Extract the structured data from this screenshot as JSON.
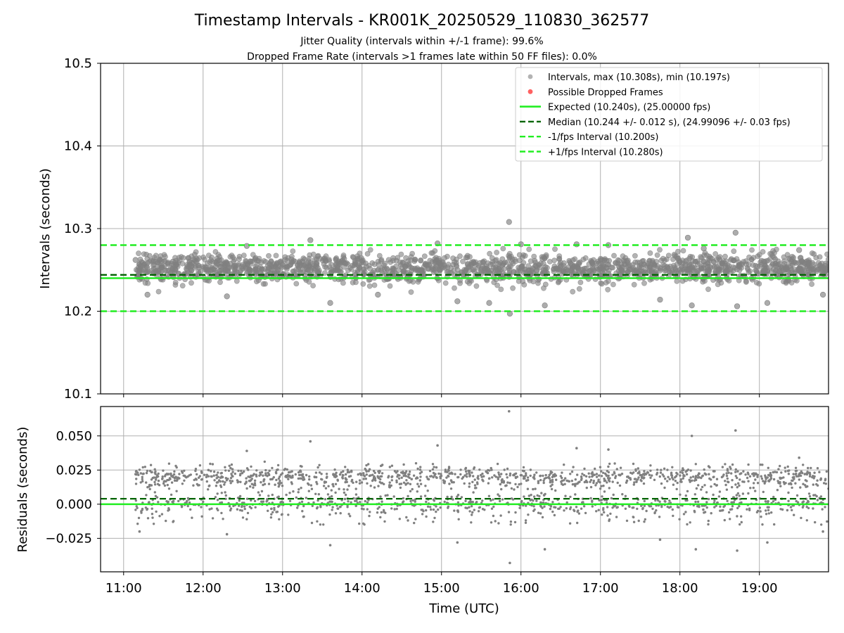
{
  "chart_data": [
    {
      "type": "scatter",
      "title": "Timestamp Intervals - KR001K_20250529_110830_362577",
      "subtitle_lines": [
        "Jitter Quality (intervals within +/-1 frame): 99.6%",
        "Dropped Frame Rate (intervals >1 frames late within 50 FF files): 0.0%"
      ],
      "ylabel": "Intervals (seconds)",
      "ylim": [
        10.1,
        10.5
      ],
      "yticks": [
        "10.1",
        "10.2",
        "10.3",
        "10.4",
        "10.5"
      ],
      "xlim_hours": [
        10.71,
        19.87
      ],
      "grid": true,
      "legend_position": "top-right",
      "legend": [
        "Intervals, max (10.308s), min (10.197s)",
        "Possible Dropped Frames",
        "Expected (10.240s), (25.00000 fps)",
        "Median (10.244 +/- 0.012 s), (24.99096 +/- 0.03 fps)",
        "-1/fps Interval (10.200s)",
        "+1/fps Interval (10.280s)"
      ],
      "reference_lines": {
        "expected": 10.24,
        "median": 10.244,
        "minus_one_frame": 10.2,
        "plus_one_frame": 10.28
      },
      "series": [
        {
          "name": "Intervals, max (10.308s), min (10.197s)",
          "band_center": 10.252,
          "band_spread": 0.018,
          "points": [
            [
              11.15,
              10.262
            ],
            [
              11.3,
              10.22
            ],
            [
              11.62,
              10.26
            ],
            [
              12.1,
              10.25
            ],
            [
              12.3,
              10.218
            ],
            [
              12.55,
              10.279
            ],
            [
              13.35,
              10.286
            ],
            [
              13.6,
              10.21
            ],
            [
              14.2,
              10.22
            ],
            [
              14.95,
              10.282
            ],
            [
              15.2,
              10.212
            ],
            [
              15.6,
              10.21
            ],
            [
              15.85,
              10.308
            ],
            [
              15.86,
              10.197
            ],
            [
              16.0,
              10.281
            ],
            [
              16.3,
              10.207
            ],
            [
              16.7,
              10.281
            ],
            [
              17.1,
              10.28
            ],
            [
              17.75,
              10.214
            ],
            [
              18.1,
              10.289
            ],
            [
              18.15,
              10.207
            ],
            [
              18.3,
              10.276
            ],
            [
              18.7,
              10.295
            ],
            [
              18.72,
              10.206
            ],
            [
              19.1,
              10.21
            ],
            [
              19.5,
              10.274
            ],
            [
              19.8,
              10.22
            ]
          ]
        },
        {
          "name": "Possible Dropped Frames",
          "points": []
        }
      ],
      "colors": {
        "points": "#808080",
        "dropped": "#ff4444",
        "expected": "#22ee22",
        "median": "#006400",
        "interval": "#22ee22"
      }
    },
    {
      "type": "scatter",
      "ylabel": "Residuals (seconds)",
      "xlabel": "Time (UTC)",
      "ylim": [
        -0.0495,
        0.0715
      ],
      "yticks": [
        "−0.025",
        "0.000",
        "0.025",
        "0.050"
      ],
      "xticks": [
        "11:00",
        "12:00",
        "13:00",
        "14:00",
        "15:00",
        "16:00",
        "17:00",
        "18:00",
        "19:00"
      ],
      "xlim_hours": [
        10.71,
        19.87
      ],
      "grid": true,
      "reference_lines": {
        "zero": 0.0,
        "median": 0.004
      },
      "series": [
        {
          "name": "",
          "points": [
            [
              11.15,
              0.022
            ],
            [
              11.2,
              -0.02
            ],
            [
              11.62,
              0.02
            ],
            [
              12.3,
              -0.022
            ],
            [
              12.55,
              0.039
            ],
            [
              13.35,
              0.046
            ],
            [
              13.6,
              -0.03
            ],
            [
              14.95,
              0.043
            ],
            [
              15.2,
              -0.028
            ],
            [
              15.85,
              0.068
            ],
            [
              15.86,
              -0.043
            ],
            [
              16.3,
              -0.033
            ],
            [
              16.7,
              0.041
            ],
            [
              17.1,
              0.04
            ],
            [
              17.75,
              -0.026
            ],
            [
              18.15,
              0.05
            ],
            [
              18.2,
              -0.033
            ],
            [
              18.7,
              0.054
            ],
            [
              18.72,
              -0.034
            ],
            [
              19.1,
              -0.028
            ],
            [
              19.5,
              0.034
            ],
            [
              19.8,
              -0.02
            ]
          ]
        }
      ],
      "colors": {
        "points": "#808080",
        "zero": "#22ee22",
        "median": "#006400"
      }
    }
  ]
}
